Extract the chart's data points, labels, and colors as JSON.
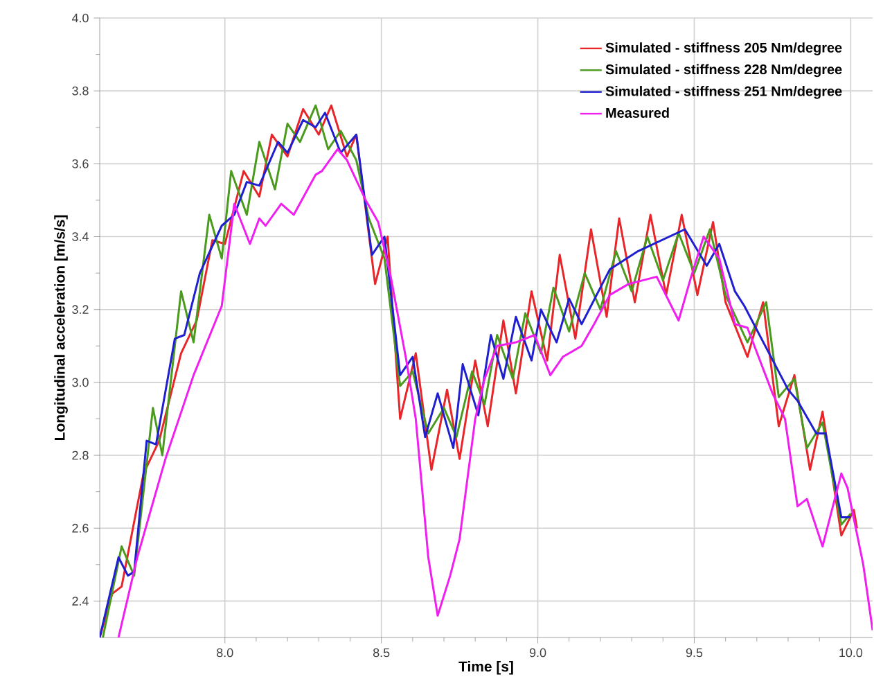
{
  "chart_data": {
    "type": "line",
    "xlabel": "Time [s]",
    "ylabel": "Longitudinal acceleration [m/s/s]",
    "xlim": [
      7.6,
      10.07
    ],
    "ylim": [
      2.3,
      4.0
    ],
    "xticks": [
      {
        "value": 8.0,
        "label": "8.0"
      },
      {
        "value": 8.5,
        "label": "8.5"
      },
      {
        "value": 9.0,
        "label": "9.0"
      },
      {
        "value": 9.5,
        "label": "9.5"
      },
      {
        "value": 10.0,
        "label": "10.0"
      }
    ],
    "yticks": [
      {
        "value": 2.4,
        "label": "2.4"
      },
      {
        "value": 2.6,
        "label": "2.6"
      },
      {
        "value": 2.8,
        "label": "2.8"
      },
      {
        "value": 3.0,
        "label": "3.0"
      },
      {
        "value": 3.2,
        "label": "3.2"
      },
      {
        "value": 3.4,
        "label": "3.4"
      },
      {
        "value": 3.6,
        "label": "3.6"
      },
      {
        "value": 3.8,
        "label": "3.8"
      },
      {
        "value": 4.0,
        "label": "4.0"
      }
    ],
    "grid": true,
    "legend": "top right",
    "marker": "none",
    "line_style": "solid",
    "series": [
      {
        "name": "Simulated - stiffness 205 Nm/degree",
        "color": "#e8262a",
        "x": [
          7.6,
          7.64,
          7.67,
          7.74,
          7.79,
          7.86,
          7.91,
          7.96,
          8.0,
          8.06,
          8.11,
          8.15,
          8.2,
          8.25,
          8.3,
          8.34,
          8.39,
          8.42,
          8.48,
          8.52,
          8.56,
          8.61,
          8.66,
          8.71,
          8.75,
          8.8,
          8.84,
          8.89,
          8.93,
          8.98,
          9.03,
          9.07,
          9.12,
          9.17,
          9.22,
          9.26,
          9.31,
          9.36,
          9.41,
          9.46,
          9.51,
          9.56,
          9.6,
          9.67,
          9.72,
          9.77,
          9.82,
          9.87,
          9.91,
          9.97,
          10.01,
          10.02
        ],
        "values": [
          2.3,
          2.42,
          2.44,
          2.75,
          2.84,
          3.08,
          3.17,
          3.39,
          3.38,
          3.58,
          3.51,
          3.68,
          3.62,
          3.75,
          3.68,
          3.76,
          3.62,
          3.68,
          3.27,
          3.4,
          2.9,
          3.08,
          2.76,
          2.98,
          2.79,
          3.06,
          2.88,
          3.17,
          2.97,
          3.25,
          3.06,
          3.35,
          3.12,
          3.42,
          3.18,
          3.45,
          3.22,
          3.46,
          3.24,
          3.46,
          3.24,
          3.44,
          3.22,
          3.07,
          3.22,
          2.88,
          3.02,
          2.76,
          2.92,
          2.58,
          2.65,
          2.6
        ]
      },
      {
        "name": "Simulated - stiffness 228 Nm/degree",
        "color": "#4a9a1e",
        "x": [
          7.61,
          7.67,
          7.71,
          7.77,
          7.8,
          7.86,
          7.9,
          7.95,
          7.99,
          8.02,
          8.07,
          8.11,
          8.16,
          8.2,
          8.24,
          8.29,
          8.33,
          8.37,
          8.42,
          8.46,
          8.51,
          8.56,
          8.6,
          8.65,
          8.7,
          8.74,
          8.79,
          8.83,
          8.87,
          8.92,
          8.96,
          9.01,
          9.05,
          9.1,
          9.15,
          9.2,
          9.25,
          9.3,
          9.35,
          9.4,
          9.45,
          9.5,
          9.55,
          9.6,
          9.67,
          9.73,
          9.77,
          9.82,
          9.86,
          9.91,
          9.97,
          10.0
        ],
        "values": [
          2.3,
          2.55,
          2.47,
          2.93,
          2.8,
          3.25,
          3.11,
          3.46,
          3.34,
          3.58,
          3.46,
          3.66,
          3.53,
          3.71,
          3.66,
          3.76,
          3.64,
          3.69,
          3.61,
          3.45,
          3.34,
          2.99,
          3.03,
          2.86,
          2.93,
          2.85,
          3.03,
          2.94,
          3.13,
          3.01,
          3.19,
          3.08,
          3.26,
          3.14,
          3.3,
          3.2,
          3.36,
          3.25,
          3.4,
          3.28,
          3.41,
          3.3,
          3.42,
          3.24,
          3.11,
          3.22,
          2.96,
          3.01,
          2.82,
          2.89,
          2.61,
          2.64
        ]
      },
      {
        "name": "Simulated - stiffness 251 Nm/degree",
        "color": "#1f1fcf",
        "x": [
          7.6,
          7.66,
          7.69,
          7.71,
          7.75,
          7.78,
          7.84,
          7.87,
          7.92,
          7.99,
          8.03,
          8.07,
          8.11,
          8.17,
          8.2,
          8.25,
          8.29,
          8.32,
          8.37,
          8.42,
          8.47,
          8.51,
          8.56,
          8.6,
          8.64,
          8.68,
          8.73,
          8.76,
          8.81,
          8.85,
          8.89,
          8.93,
          8.98,
          9.01,
          9.06,
          9.1,
          9.14,
          9.23,
          9.32,
          9.47,
          9.54,
          9.58,
          9.63,
          9.66,
          9.8,
          9.83,
          9.89,
          9.92,
          9.97,
          10.0
        ],
        "values": [
          2.3,
          2.52,
          2.47,
          2.48,
          2.84,
          2.83,
          3.12,
          3.13,
          3.3,
          3.43,
          3.46,
          3.55,
          3.54,
          3.66,
          3.63,
          3.72,
          3.7,
          3.74,
          3.63,
          3.68,
          3.35,
          3.4,
          3.02,
          3.07,
          2.85,
          2.97,
          2.82,
          3.05,
          2.91,
          3.13,
          3.01,
          3.18,
          3.06,
          3.2,
          3.11,
          3.23,
          3.16,
          3.31,
          3.36,
          3.42,
          3.32,
          3.38,
          3.25,
          3.21,
          2.98,
          2.95,
          2.86,
          2.86,
          2.63,
          2.63
        ]
      },
      {
        "name": "Measured",
        "color": "#f01ff0",
        "x": [
          7.66,
          7.72,
          7.81,
          7.9,
          7.99,
          8.03,
          8.08,
          8.11,
          8.13,
          8.18,
          8.22,
          8.29,
          8.31,
          8.36,
          8.39,
          8.45,
          8.49,
          8.53,
          8.58,
          8.61,
          8.65,
          8.68,
          8.72,
          8.75,
          8.8,
          8.83,
          8.87,
          8.93,
          8.99,
          9.04,
          9.08,
          9.14,
          9.18,
          9.23,
          9.29,
          9.38,
          9.45,
          9.49,
          9.53,
          9.58,
          9.63,
          9.67,
          9.75,
          9.79,
          9.83,
          9.86,
          9.91,
          9.97,
          9.99,
          10.04,
          10.07
        ],
        "values": [
          2.3,
          2.52,
          2.79,
          3.02,
          3.21,
          3.49,
          3.38,
          3.45,
          3.43,
          3.49,
          3.46,
          3.57,
          3.58,
          3.64,
          3.61,
          3.5,
          3.44,
          3.29,
          3.06,
          2.9,
          2.52,
          2.36,
          2.47,
          2.57,
          2.9,
          3.01,
          3.1,
          3.11,
          3.13,
          3.02,
          3.07,
          3.1,
          3.16,
          3.24,
          3.27,
          3.29,
          3.17,
          3.29,
          3.4,
          3.34,
          3.16,
          3.15,
          2.97,
          2.9,
          2.66,
          2.68,
          2.55,
          2.75,
          2.71,
          2.5,
          2.32
        ]
      }
    ]
  }
}
